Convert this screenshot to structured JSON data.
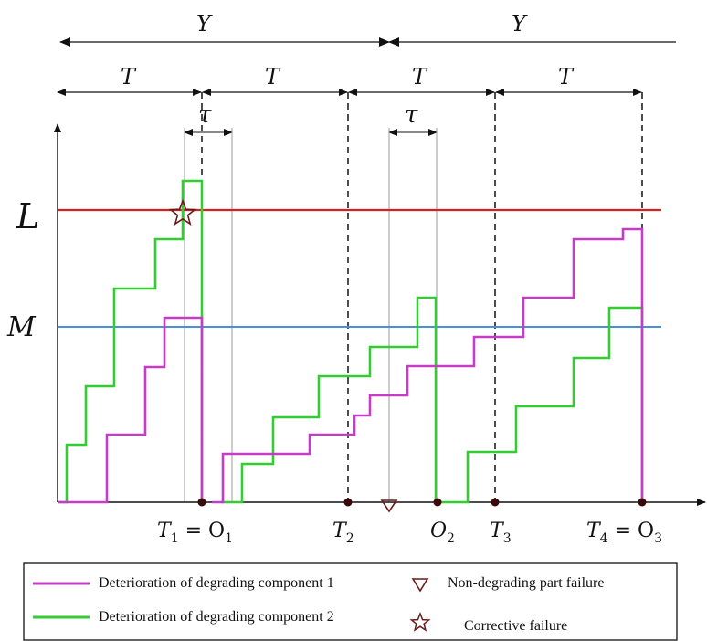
{
  "labels": {
    "period_long": "Y",
    "period_short": "T",
    "delay": "τ",
    "threshold_failure": "L",
    "threshold_maintenance": "M",
    "axis_ticks": [
      {
        "name": "T",
        "sub": "1",
        "rest": " = O",
        "rest_sub": "1"
      },
      {
        "name": "T",
        "sub": "2"
      },
      {
        "name": "O",
        "sub": "2"
      },
      {
        "name": "T",
        "sub": "3"
      },
      {
        "name": "T",
        "sub": "4",
        "rest": " = O",
        "rest_sub": "3"
      }
    ]
  },
  "legend": {
    "component1": "Deterioration of degrading component 1",
    "component2": "Deterioration of degrading component 2",
    "non_degrading_failure": "Non-degrading part failure",
    "corrective_failure": "Corrective failure"
  },
  "colors": {
    "component1": "#c63cc6",
    "component2": "#33cc33",
    "threshold_L": "#d42020",
    "threshold_M": "#4a90d9",
    "marker": "#6b1a1a"
  }
}
